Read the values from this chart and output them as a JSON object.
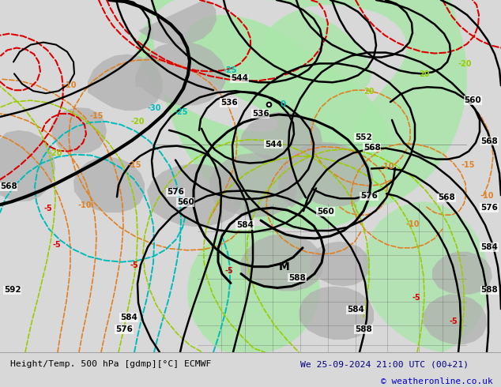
{
  "title_left": "Height/Temp. 500 hPa [gdmp][°C] ECMWF",
  "title_right": "We 25-09-2024 21:00 UTC (00+21)",
  "copyright": "© weatheronline.co.uk",
  "bg_color": "#d8d8d8",
  "map_bg": "#d8d8d8",
  "green_color": "#aae6aa",
  "figsize": [
    6.34,
    4.9
  ],
  "dpi": 100,
  "title_color": "#000080",
  "copyright_color": "#0000cc",
  "orange": "#e08020",
  "cyan": "#00bbbb",
  "red": "#dd0000",
  "yg": "#99cc00",
  "black": "#000000",
  "gray_land": "#b0b0b0"
}
